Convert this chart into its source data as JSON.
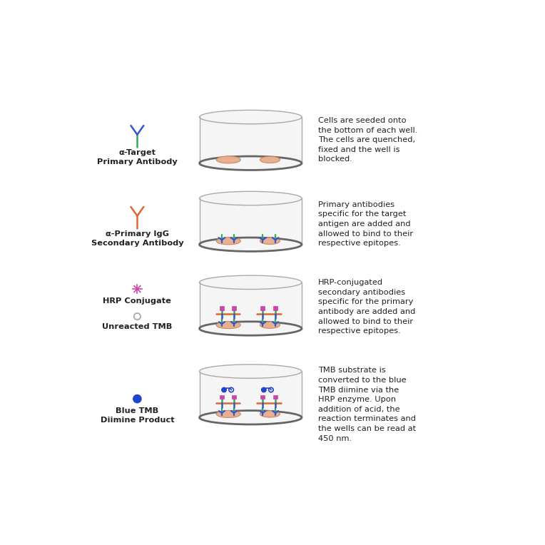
{
  "background_color": "#ffffff",
  "rows": [
    {
      "icon_label": "α-Target\nPrimary Antibody",
      "icon_type": "antibody_green_blue",
      "well_content": "cells_only",
      "description": "Cells are seeded onto\nthe bottom of each well.\nThe cells are quenched,\nfixed and the well is\nblocked."
    },
    {
      "icon_label": "α-Primary IgG\nSecondary Antibody",
      "icon_type": "antibody_orange",
      "well_content": "cells_with_primary",
      "description": "Primary antibodies\nspecific for the target\nantigen are added and\nallowed to bind to their\nrespective epitopes."
    },
    {
      "icon_label": "HRP Conjugate",
      "icon_type": "hrp_conjugate",
      "well_content": "cells_with_secondary",
      "icon_label2": "Unreacted TMB",
      "icon_type2": "tmb_unreacted",
      "description": "HRP-conjugated\nsecondary antibodies\nspecific for the primary\nantibody are added and\nallowed to bind to their\nrespective epitopes."
    },
    {
      "icon_label": "Blue TMB\nDiimine Product",
      "icon_type": "tmb_blue",
      "well_content": "cells_with_product",
      "description": "TMB substrate is\nconverted to the blue\nTMB diimine via the\nHRP enzyme. Upon\naddition of acid, the\nreaction terminates and\nthe wells can be read at\n450 nm."
    }
  ],
  "well_border_color": "#aaaaaa",
  "well_fill_color": "#f5f5f5",
  "cell_color": "#e8b090",
  "cell_outline_color": "#cc8860",
  "antibody_green": "#33aa55",
  "antibody_blue": "#3355cc",
  "antibody_orange": "#dd6633",
  "hrp_color": "#cc44aa",
  "tmb_blue_color": "#2244cc",
  "tmb_unreacted_color": "#aaaaaa",
  "text_color": "#222222",
  "well_side_color": "#999999",
  "well_bottom_color": "#555555"
}
